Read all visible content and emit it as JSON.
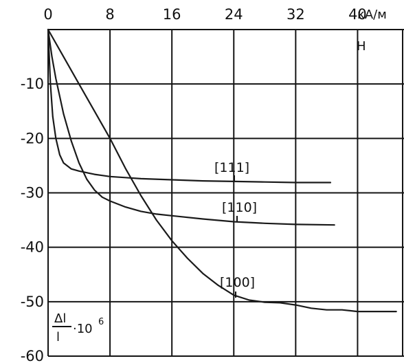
{
  "chart_data": {
    "type": "line",
    "title": "",
    "xlabel": "H",
    "x_unit": "кА/м",
    "ylabel_fraction": {
      "numerator": "Δl",
      "denominator": "l",
      "suffix": "·10",
      "exponent": "6"
    },
    "xlim": [
      0,
      46
    ],
    "ylim": [
      -60,
      0
    ],
    "x_ticks": [
      "0",
      "8",
      "16",
      "24",
      "32",
      "40"
    ],
    "y_ticks": [
      "-10",
      "-20",
      "-30",
      "-40",
      "-50",
      "-60"
    ],
    "grid": true,
    "series": [
      {
        "name": "[111]",
        "x": [
          0,
          0.3,
          0.6,
          1,
          1.5,
          2,
          3,
          4,
          5,
          6,
          7,
          8,
          10,
          12,
          16,
          20,
          24,
          28,
          32,
          36.5
        ],
        "y": [
          0,
          -10,
          -16,
          -20,
          -23,
          -24.5,
          -25.6,
          -26,
          -26.3,
          -26.6,
          -26.8,
          -27,
          -27.2,
          -27.4,
          -27.6,
          -27.8,
          -27.9,
          -28,
          -28.1,
          -28.1
        ]
      },
      {
        "name": "[110]",
        "x": [
          0,
          0.5,
          1,
          2,
          3,
          4,
          5,
          6,
          7,
          8,
          10,
          12,
          14,
          16,
          20,
          24,
          28,
          32,
          37
        ],
        "y": [
          0,
          -5,
          -9,
          -15.5,
          -20.5,
          -24.5,
          -27.5,
          -29.5,
          -30.8,
          -31.5,
          -32.6,
          -33.4,
          -33.9,
          -34.2,
          -34.8,
          -35.3,
          -35.6,
          -35.8,
          -35.9
        ]
      },
      {
        "name": "[100]",
        "x": [
          0,
          2,
          4,
          6,
          8,
          10,
          12,
          14,
          16,
          18,
          20,
          22,
          24,
          26,
          28,
          30,
          32,
          34,
          36,
          38,
          40,
          42,
          44,
          45
        ],
        "y": [
          0,
          -5,
          -10,
          -15,
          -20,
          -25.5,
          -30.5,
          -35,
          -38.8,
          -42,
          -44.8,
          -47,
          -48.8,
          -49.7,
          -50.1,
          -50.2,
          -50.6,
          -51.2,
          -51.5,
          -51.5,
          -51.8,
          -51.8,
          -51.8,
          -51.8
        ]
      }
    ]
  }
}
